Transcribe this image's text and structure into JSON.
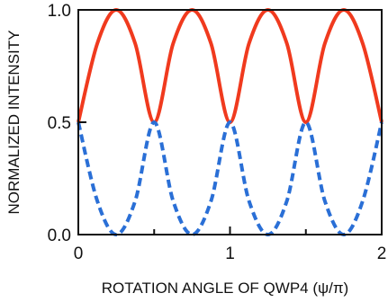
{
  "chart_data": {
    "type": "line",
    "xlabel": "ROTATION ANGLE OF QWP4 (ψ/π)",
    "ylabel": "NORMALIZED INTENSITY",
    "xlim": [
      0,
      2
    ],
    "ylim": [
      0,
      1
    ],
    "x_ticks": [
      0,
      1,
      2
    ],
    "x_tick_labels": [
      "0",
      "1",
      "2"
    ],
    "x_minor_ticks": [
      0.5,
      1.5
    ],
    "y_ticks": [
      0.0,
      0.5,
      1.0
    ],
    "y_tick_labels": [
      "0.0",
      "0.5",
      "1.0"
    ],
    "grid": false,
    "legend": "none",
    "series": [
      {
        "color": "#f03a1e",
        "style": "solid",
        "x": [
          0,
          0.125,
          0.25,
          0.375,
          0.5,
          0.625,
          0.75,
          0.875,
          1.0,
          1.125,
          1.25,
          1.375,
          1.5,
          1.625,
          1.75,
          1.875,
          2.0
        ],
        "y": [
          0.5,
          0.85,
          1.0,
          0.85,
          0.5,
          0.85,
          1.0,
          0.85,
          0.5,
          0.85,
          1.0,
          0.85,
          0.5,
          0.85,
          1.0,
          0.85,
          0.5
        ]
      },
      {
        "color": "#2a6fd6",
        "style": "dashed",
        "x": [
          0,
          0.125,
          0.25,
          0.375,
          0.5,
          0.625,
          0.75,
          0.875,
          1.0,
          1.125,
          1.25,
          1.375,
          1.5,
          1.625,
          1.75,
          1.875,
          2.0
        ],
        "y": [
          0.5,
          0.15,
          0.0,
          0.15,
          0.5,
          0.15,
          0.0,
          0.15,
          0.5,
          0.15,
          0.0,
          0.15,
          0.5,
          0.15,
          0.0,
          0.15,
          0.5
        ]
      }
    ]
  }
}
